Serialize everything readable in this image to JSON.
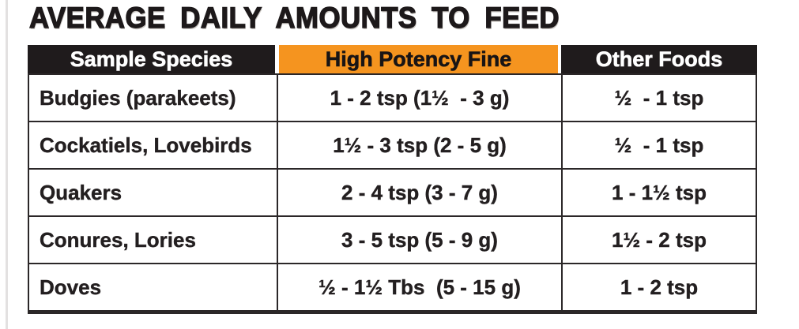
{
  "title": "AVERAGE DAILY AMOUNTS TO FEED",
  "colors": {
    "accent_orange": "#F5941F",
    "header_black": "#1F1B1C",
    "body_text": "#231F20",
    "border": "#2B2728"
  },
  "table": {
    "columns": [
      {
        "key": "species",
        "label": "Sample Species"
      },
      {
        "key": "high_potency_fine",
        "label": "High Potency Fine"
      },
      {
        "key": "other_foods",
        "label": "Other Foods"
      }
    ],
    "rows": [
      {
        "species": "Budgies (parakeets)",
        "high_potency_fine": "1 - 2 tsp (1½  - 3 g)",
        "other_foods": "½  - 1 tsp"
      },
      {
        "species": "Cockatiels, Lovebirds",
        "high_potency_fine": "1½ - 3 tsp (2 - 5 g)",
        "other_foods": "½  - 1 tsp"
      },
      {
        "species": "Quakers",
        "high_potency_fine": "2 - 4 tsp (3 - 7 g)",
        "other_foods": "1 - 1½ tsp"
      },
      {
        "species": "Conures, Lories",
        "high_potency_fine": "3 - 5 tsp (5 - 9 g)",
        "other_foods": "1½ - 2 tsp"
      },
      {
        "species": "Doves",
        "high_potency_fine": "½ - 1½ Tbs  (5 - 15 g)",
        "other_foods": "1 - 2 tsp"
      }
    ]
  }
}
